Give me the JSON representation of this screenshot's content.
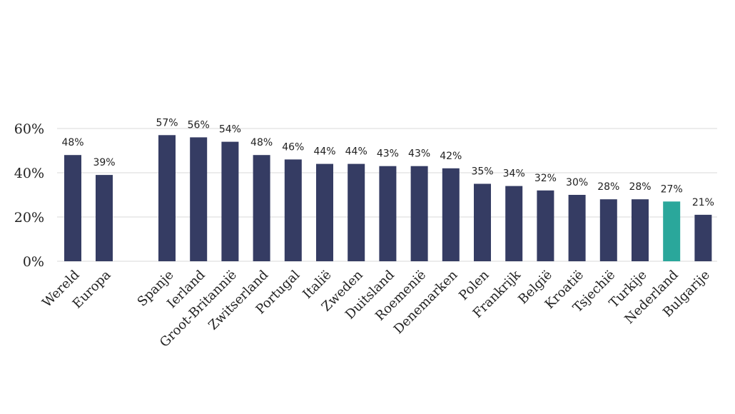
{
  "chart_data": {
    "type": "bar",
    "title": "",
    "xlabel": "",
    "ylabel": "",
    "ylim": [
      0,
      60
    ],
    "yticks": [
      0,
      20,
      40,
      60
    ],
    "ytick_format": "{v}%",
    "grid": "horizontal",
    "legend": "none",
    "colors": {
      "default": "#353c63",
      "highlight": "#2aa79b"
    },
    "categories": [
      "Wereld",
      "Europa",
      "Spanje",
      "Ierland",
      "Groot-Britannië",
      "Zwitserland",
      "Portugal",
      "Italië",
      "Zweden",
      "Duitsland",
      "Roemenië",
      "Denemarken",
      "Polen",
      "Frankrijk",
      "België",
      "Kroatië",
      "Tsjechië",
      "Turkije",
      "Nederland",
      "Bulgarije"
    ],
    "values": [
      48,
      39,
      57,
      56,
      54,
      48,
      46,
      44,
      44,
      43,
      43,
      42,
      35,
      34,
      32,
      30,
      28,
      28,
      27,
      21
    ],
    "data_labels": [
      "48%",
      "39%",
      "57%",
      "56%",
      "54%",
      "48%",
      "46%",
      "44%",
      "44%",
      "43%",
      "43%",
      "42%",
      "35%",
      "34%",
      "32%",
      "30%",
      "28%",
      "28%",
      "27%",
      "21%"
    ],
    "highlight": [
      "Nederland"
    ]
  }
}
